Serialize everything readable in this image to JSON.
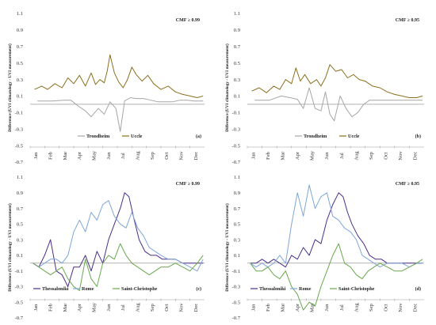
{
  "chart_data": [
    {
      "type": "line",
      "panel_label": "(a)",
      "annotation": "CMF ≥ 0.99",
      "ylabel": "Difference (UVI climatology - UVI measurement)",
      "ylim": [
        -0.7,
        1.1
      ],
      "yticks": [
        "1.1",
        "0.9",
        "0.7",
        "0.5",
        "0.3",
        "0.1",
        "-0.1",
        "-0.3",
        "-0.5",
        "-0.7"
      ],
      "months": [
        "Jan",
        "Feb",
        "Mar",
        "Apr",
        "May",
        "Jun",
        "Jul",
        "Aug",
        "Sep",
        "Oct",
        "Nov",
        "Dec"
      ],
      "series": [
        {
          "name": "Trondheim",
          "color": "#a6a6a6",
          "x": [
            0.5,
            1.5,
            2.3,
            2.8,
            3.3,
            3.8,
            4.2,
            4.7,
            5.1,
            5.5,
            5.9,
            6.2,
            6.5,
            6.9,
            7.3,
            7.8,
            8.3,
            8.8,
            9.3,
            9.8,
            10.3,
            10.8,
            11.3,
            11.9
          ],
          "values": [
            0.04,
            0.04,
            0.05,
            0.05,
            -0.02,
            -0.08,
            -0.15,
            -0.05,
            -0.12,
            0.03,
            -0.05,
            -0.33,
            0.04,
            0.08,
            0.07,
            0.07,
            0.05,
            0.03,
            0.03,
            0.03,
            0.05,
            0.05,
            0.04,
            0.04
          ]
        },
        {
          "name": "Uccle",
          "color": "#8b6f1d",
          "x": [
            0.3,
            0.8,
            1.2,
            1.7,
            2.2,
            2.6,
            3.0,
            3.4,
            3.8,
            4.2,
            4.5,
            4.8,
            5.1,
            5.3,
            5.5,
            5.8,
            6.1,
            6.4,
            6.7,
            7.0,
            7.3,
            7.7,
            8.1,
            8.5,
            9.0,
            9.5,
            10.0,
            10.5,
            11.0,
            11.5,
            11.9
          ],
          "values": [
            0.18,
            0.22,
            0.18,
            0.25,
            0.2,
            0.32,
            0.25,
            0.35,
            0.22,
            0.38,
            0.24,
            0.3,
            0.26,
            0.4,
            0.6,
            0.38,
            0.27,
            0.2,
            0.3,
            0.45,
            0.36,
            0.28,
            0.35,
            0.25,
            0.18,
            0.22,
            0.15,
            0.12,
            0.1,
            0.08,
            0.1
          ]
        }
      ]
    },
    {
      "type": "line",
      "panel_label": "(b)",
      "annotation": "CMF ≥ 0.95",
      "ylabel": "Difference (UVI climatology - UVI measurement)",
      "ylim": [
        -0.7,
        1.1
      ],
      "yticks": [
        "1.1",
        "0.9",
        "0.7",
        "0.5",
        "0.3",
        "0.1",
        "-0.1",
        "-0.3",
        "-0.5",
        "-0.7"
      ],
      "months": [
        "Jan",
        "Feb",
        "Mar",
        "Apr",
        "May",
        "Jun",
        "Jul",
        "Aug",
        "Sep",
        "Oct",
        "Nov",
        "Dec"
      ],
      "series": [
        {
          "name": "Trondheim",
          "color": "#a6a6a6",
          "x": [
            0.5,
            1.5,
            2.3,
            2.9,
            3.4,
            3.8,
            4.2,
            4.6,
            5.0,
            5.3,
            5.6,
            5.9,
            6.3,
            6.7,
            7.1,
            7.5,
            7.9,
            8.3,
            8.8,
            9.3,
            9.8,
            10.3,
            10.8,
            11.3,
            11.9
          ],
          "values": [
            0.05,
            0.05,
            0.1,
            0.08,
            0.06,
            -0.05,
            0.2,
            -0.05,
            -0.08,
            0.15,
            -0.12,
            -0.2,
            0.1,
            -0.05,
            -0.15,
            -0.1,
            0.0,
            0.05,
            0.05,
            0.05,
            0.05,
            0.05,
            0.05,
            0.05,
            0.05
          ]
        },
        {
          "name": "Uccle",
          "color": "#8b6f1d",
          "x": [
            0.3,
            0.8,
            1.3,
            1.8,
            2.2,
            2.6,
            3.0,
            3.3,
            3.6,
            3.9,
            4.3,
            4.7,
            5.0,
            5.3,
            5.6,
            6.0,
            6.4,
            6.8,
            7.2,
            7.6,
            8.0,
            8.5,
            9.0,
            9.5,
            10.0,
            10.5,
            11.0,
            11.5,
            11.9
          ],
          "values": [
            0.16,
            0.2,
            0.14,
            0.22,
            0.18,
            0.3,
            0.25,
            0.44,
            0.28,
            0.36,
            0.25,
            0.3,
            0.22,
            0.32,
            0.48,
            0.4,
            0.42,
            0.32,
            0.36,
            0.3,
            0.28,
            0.22,
            0.2,
            0.15,
            0.12,
            0.1,
            0.08,
            0.08,
            0.1
          ]
        }
      ]
    },
    {
      "type": "line",
      "panel_label": "(c)",
      "annotation": "CMF ≥ 0.99",
      "ylabel": "Difference (UVI climatology - UVI measurement)",
      "ylim": [
        -0.7,
        1.1
      ],
      "yticks": [
        "1.1",
        "0.9",
        "0.7",
        "0.5",
        "0.3",
        "0.1",
        "-0.1",
        "-0.3",
        "-0.5",
        "-0.7"
      ],
      "months": [
        "Jan",
        "Feb",
        "Mar",
        "Apr",
        "May",
        "Jun",
        "Jul",
        "Aug",
        "Sep",
        "Oct",
        "Nov",
        "Dec"
      ],
      "series": [
        {
          "name": "Thessaloniki",
          "color": "#4a2f8a",
          "x": [
            0.2,
            0.6,
            1.0,
            1.4,
            1.8,
            2.2,
            2.6,
            3.0,
            3.4,
            3.8,
            4.2,
            4.6,
            5.0,
            5.4,
            5.8,
            6.2,
            6.5,
            6.8,
            7.1,
            7.5,
            7.9,
            8.3,
            8.7,
            9.1,
            9.5,
            10.0,
            10.5,
            11.0,
            11.5,
            11.9
          ],
          "values": [
            0.0,
            -0.05,
            0.1,
            0.3,
            -0.1,
            -0.15,
            -0.3,
            -0.05,
            -0.05,
            0.1,
            -0.1,
            0.15,
            0.0,
            0.3,
            0.5,
            0.7,
            0.9,
            0.85,
            0.6,
            0.3,
            0.15,
            0.1,
            0.1,
            0.05,
            0.05,
            0.05,
            0.0,
            0.0,
            0.0,
            0.0
          ]
        },
        {
          "name": "Rome",
          "color": "#7fa6d8",
          "x": [
            0.2,
            0.6,
            1.0,
            1.4,
            1.8,
            2.2,
            2.6,
            3.0,
            3.4,
            3.8,
            4.2,
            4.6,
            5.0,
            5.4,
            5.8,
            6.2,
            6.6,
            7.0,
            7.4,
            7.8,
            8.2,
            8.6,
            9.0,
            9.5,
            10.0,
            10.5,
            11.0,
            11.5,
            11.9
          ],
          "values": [
            0.0,
            -0.05,
            0.0,
            0.05,
            0.05,
            0.0,
            0.1,
            0.4,
            0.55,
            0.4,
            0.65,
            0.55,
            0.75,
            0.8,
            0.6,
            0.5,
            0.45,
            0.65,
            0.45,
            0.35,
            0.2,
            0.15,
            0.1,
            0.05,
            0.05,
            0.0,
            -0.05,
            -0.1,
            0.05
          ]
        },
        {
          "name": "Saint-Christophe",
          "color": "#6aa84f",
          "x": [
            0.2,
            0.6,
            1.0,
            1.4,
            1.8,
            2.2,
            2.6,
            3.0,
            3.4,
            3.8,
            4.2,
            4.6,
            5.0,
            5.4,
            5.8,
            6.2,
            6.6,
            7.0,
            7.4,
            7.8,
            8.2,
            8.6,
            9.0,
            9.5,
            10.0,
            10.5,
            11.0,
            11.5,
            11.9
          ],
          "values": [
            0.0,
            -0.05,
            -0.1,
            -0.15,
            -0.1,
            -0.05,
            -0.2,
            -0.3,
            -0.35,
            0.05,
            -0.2,
            -0.3,
            0.0,
            0.1,
            0.05,
            0.25,
            0.1,
            0.0,
            -0.05,
            -0.1,
            -0.15,
            -0.1,
            -0.05,
            -0.05,
            0.0,
            -0.05,
            -0.1,
            0.0,
            0.1
          ]
        }
      ]
    },
    {
      "type": "line",
      "panel_label": "(d)",
      "annotation": "CMF ≥ 0.95",
      "ylabel": "Difference (UVI climatology - UVI measurement)",
      "ylim": [
        -0.7,
        1.1
      ],
      "yticks": [
        "1.1",
        "0.9",
        "0.7",
        "0.5",
        "0.3",
        "0.1",
        "-0.1",
        "-0.3",
        "-0.5",
        "-0.7"
      ],
      "months": [
        "Jan",
        "Feb",
        "Mar",
        "Apr",
        "May",
        "Jun",
        "Jul",
        "Aug",
        "Sep",
        "Oct",
        "Nov",
        "Dec"
      ],
      "series": [
        {
          "name": "Thessaloniki",
          "color": "#4a2f8a",
          "x": [
            0.2,
            0.6,
            1.0,
            1.4,
            1.8,
            2.2,
            2.6,
            3.0,
            3.4,
            3.8,
            4.2,
            4.6,
            5.0,
            5.4,
            5.8,
            6.2,
            6.5,
            6.8,
            7.1,
            7.5,
            7.9,
            8.3,
            8.7,
            9.1,
            9.5,
            10.0,
            10.5,
            11.0,
            11.5,
            11.9
          ],
          "values": [
            0.0,
            0.0,
            0.05,
            0.0,
            0.05,
            0.0,
            -0.05,
            0.1,
            0.05,
            0.2,
            0.1,
            0.3,
            0.25,
            0.55,
            0.75,
            0.9,
            0.85,
            0.65,
            0.5,
            0.35,
            0.25,
            0.1,
            0.05,
            0.05,
            0.0,
            0.0,
            0.0,
            0.0,
            0.0,
            0.0
          ]
        },
        {
          "name": "Rome",
          "color": "#7fa6d8",
          "x": [
            0.2,
            0.6,
            1.0,
            1.4,
            1.8,
            2.2,
            2.6,
            3.0,
            3.4,
            3.8,
            4.2,
            4.6,
            5.0,
            5.4,
            5.8,
            6.2,
            6.6,
            7.0,
            7.4,
            7.8,
            8.2,
            8.6,
            9.0,
            9.5,
            10.0,
            10.5,
            11.0,
            11.5,
            11.9
          ],
          "values": [
            0.0,
            -0.05,
            0.0,
            -0.05,
            0.0,
            0.1,
            0.0,
            0.5,
            0.9,
            0.6,
            1.0,
            0.7,
            0.85,
            0.9,
            0.6,
            0.55,
            0.45,
            0.4,
            0.3,
            0.1,
            0.05,
            0.0,
            -0.05,
            0.0,
            0.0,
            0.0,
            -0.05,
            0.0,
            0.0
          ]
        },
        {
          "name": "Saint-Christophe",
          "color": "#6aa84f",
          "x": [
            0.2,
            0.6,
            1.0,
            1.4,
            1.8,
            2.2,
            2.6,
            3.0,
            3.4,
            3.8,
            4.2,
            4.6,
            5.0,
            5.4,
            5.8,
            6.2,
            6.6,
            7.0,
            7.4,
            7.8,
            8.2,
            8.6,
            9.0,
            9.5,
            10.0,
            10.5,
            11.0,
            11.5,
            11.9
          ],
          "values": [
            0.0,
            -0.1,
            -0.1,
            -0.05,
            -0.15,
            -0.2,
            -0.1,
            -0.3,
            -0.4,
            -0.6,
            -0.5,
            -0.55,
            -0.3,
            -0.1,
            0.1,
            0.25,
            0.0,
            -0.05,
            -0.15,
            -0.2,
            -0.1,
            -0.05,
            0.0,
            -0.05,
            -0.1,
            -0.1,
            -0.05,
            0.0,
            0.05
          ]
        }
      ]
    }
  ]
}
